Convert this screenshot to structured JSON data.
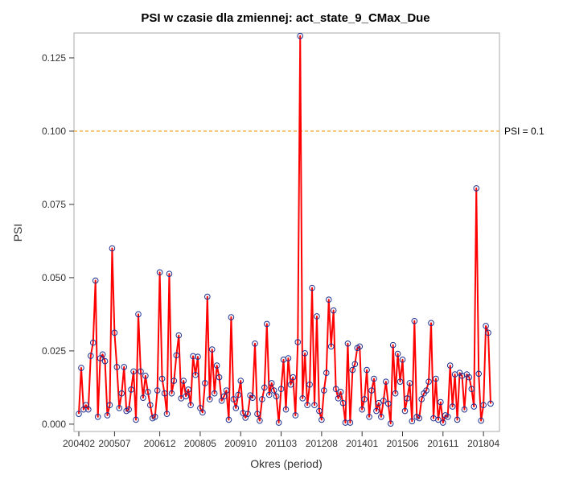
{
  "chart_data": {
    "type": "line",
    "title": "PSI w czasie dla zmiennej: act_state_9_CMax_Due",
    "xlabel": "Okres (period)",
    "ylabel": "PSI",
    "ylim": [
      -0.0025,
      0.1335
    ],
    "yticks": [
      0.0,
      0.025,
      0.05,
      0.075,
      0.1,
      0.125
    ],
    "ytick_labels": [
      "0.000",
      "0.025",
      "0.050",
      "0.075",
      "0.100",
      "0.125"
    ],
    "xticks": [
      {
        "index": 0,
        "label": "200402"
      },
      {
        "index": 15,
        "label": "200507"
      },
      {
        "index": 34,
        "label": "200612"
      },
      {
        "index": 51,
        "label": "200805"
      },
      {
        "index": 68,
        "label": "200910"
      },
      {
        "index": 85,
        "label": "201103"
      },
      {
        "index": 102,
        "label": "201208"
      },
      {
        "index": 119,
        "label": "201401"
      },
      {
        "index": 136,
        "label": "201506"
      },
      {
        "index": 153,
        "label": "201611"
      },
      {
        "index": 170,
        "label": "201804"
      }
    ],
    "grid": false,
    "reference_line": {
      "value": 0.1,
      "label": "PSI = 0.1",
      "color": "#f5b041"
    },
    "series": [
      {
        "line_color": "#ff0000",
        "marker_color": "#1f2f8f",
        "values": [
          0.0035,
          0.0192,
          0.005,
          0.0065,
          0.005,
          0.0233,
          0.0278,
          0.049,
          0.0025,
          0.0225,
          0.0238,
          0.0215,
          0.003,
          0.0065,
          0.06,
          0.0312,
          0.0195,
          0.0055,
          0.0105,
          0.0195,
          0.0045,
          0.005,
          0.0118,
          0.018,
          0.0015,
          0.0375,
          0.018,
          0.009,
          0.0165,
          0.011,
          0.0065,
          0.002,
          0.0025,
          0.0115,
          0.0518,
          0.0155,
          0.0105,
          0.0035,
          0.0513,
          0.0105,
          0.0148,
          0.0235,
          0.0303,
          0.0088,
          0.0148,
          0.0095,
          0.0118,
          0.0065,
          0.0232,
          0.0168,
          0.023,
          0.0055,
          0.004,
          0.014,
          0.0435,
          0.0085,
          0.0255,
          0.0105,
          0.02,
          0.016,
          0.008,
          0.0095,
          0.0115,
          0.0015,
          0.0365,
          0.0085,
          0.0055,
          0.01,
          0.0148,
          0.0038,
          0.0022,
          0.0035,
          0.0098,
          0.009,
          0.0275,
          0.0035,
          0.0012,
          0.0085,
          0.0125,
          0.0342,
          0.01,
          0.014,
          0.0115,
          0.0095,
          0.0005,
          0.012,
          0.022,
          0.005,
          0.0225,
          0.0135,
          0.016,
          0.003,
          0.028,
          0.1325,
          0.0088,
          0.0242,
          0.0065,
          0.0135,
          0.0465,
          0.0065,
          0.0368,
          0.0045,
          0.0015,
          0.0115,
          0.0175,
          0.0425,
          0.0265,
          0.0388,
          0.012,
          0.0088,
          0.011,
          0.0072,
          0.0005,
          0.0275,
          0.0005,
          0.0185,
          0.0205,
          0.026,
          0.0265,
          0.005,
          0.0085,
          0.0185,
          0.0025,
          0.0115,
          0.0155,
          0.0045,
          0.0072,
          0.0025,
          0.008,
          0.0145,
          0.007,
          0.0002,
          0.027,
          0.0105,
          0.024,
          0.0145,
          0.022,
          0.0045,
          0.0088,
          0.014,
          0.001,
          0.0352,
          0.0025,
          0.002,
          0.0085,
          0.0105,
          0.0115,
          0.0145,
          0.0345,
          0.002,
          0.0155,
          0.0015,
          0.0075,
          0.0005,
          0.003,
          0.0025,
          0.02,
          0.006,
          0.017,
          0.0015,
          0.0175,
          0.0165,
          0.005,
          0.017,
          0.016,
          0.012,
          0.006,
          0.0805,
          0.0172,
          0.0012,
          0.0065,
          0.0335,
          0.0312,
          0.007
        ]
      }
    ]
  }
}
